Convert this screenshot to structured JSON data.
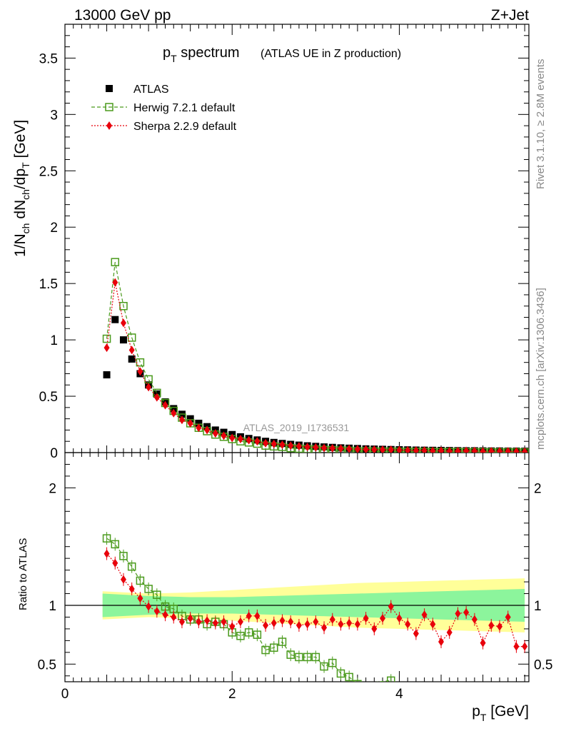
{
  "header": {
    "left": "13000 GeV pp",
    "right": "Z+Jet"
  },
  "side": {
    "rivet": "Rivet 3.1.10, ≥ 2.8M events",
    "mcplots": "mcplots.cern.ch [arXiv:1306.3436]"
  },
  "watermark": "ATLAS_2019_I1736531",
  "chart_data": {
    "type": "scatter",
    "title_main": "p",
    "title_sub": "T",
    "title_rest": " spectrum",
    "title_extra": "(ATLAS UE in Z production)",
    "top": {
      "ylabel": "1/N_ch dN_ch/dp_T [GeV]",
      "ylim": [
        0,
        3.8
      ],
      "yticks": [
        {
          "v": 0,
          "label": "0"
        },
        {
          "v": 0.5,
          "label": "0.5"
        },
        {
          "v": 1,
          "label": "1"
        },
        {
          "v": 1.5,
          "label": "1.5"
        },
        {
          "v": 2,
          "label": "2"
        },
        {
          "v": 2.5,
          "label": "2.5"
        },
        {
          "v": 3,
          "label": "3"
        },
        {
          "v": 3.5,
          "label": "3.5"
        }
      ]
    },
    "ratio": {
      "ylabel": "Ratio to ATLAS",
      "ylim": [
        0.35,
        2.3
      ],
      "yticks": [
        {
          "v": 0.5,
          "label": "0.5"
        },
        {
          "v": 1,
          "label": "1"
        },
        {
          "v": 2,
          "label": "2"
        }
      ]
    },
    "xlabel": "p_T [GeV]",
    "xlim": [
      0,
      5.55
    ],
    "xticks": [
      {
        "v": 0,
        "label": "0"
      },
      {
        "v": 2,
        "label": "2"
      },
      {
        "v": 4,
        "label": "4"
      }
    ],
    "band_x": [
      0.45,
      1.0,
      1.5,
      2.0,
      2.5,
      3.0,
      3.5,
      4.0,
      4.5,
      5.0,
      5.5
    ],
    "band_inner": [
      0.1,
      0.08,
      0.07,
      0.07,
      0.08,
      0.09,
      0.1,
      0.11,
      0.12,
      0.13,
      0.14
    ],
    "band_outer": [
      0.12,
      0.1,
      0.11,
      0.13,
      0.15,
      0.17,
      0.19,
      0.2,
      0.21,
      0.22,
      0.23
    ],
    "series": [
      {
        "name": "ATLAS",
        "color": "#000000",
        "style": "square-filled",
        "x": [
          0.5,
          0.6,
          0.7,
          0.8,
          0.9,
          1.0,
          1.1,
          1.2,
          1.3,
          1.4,
          1.5,
          1.6,
          1.7,
          1.8,
          1.9,
          2.0,
          2.1,
          2.2,
          2.3,
          2.4,
          2.5,
          2.6,
          2.7,
          2.8,
          2.9,
          3.0,
          3.1,
          3.2,
          3.3,
          3.4,
          3.5,
          3.6,
          3.7,
          3.8,
          3.9,
          4.0,
          4.1,
          4.2,
          4.3,
          4.4,
          4.5,
          4.6,
          4.7,
          4.8,
          4.9,
          5.0,
          5.1,
          5.2,
          5.3,
          5.4,
          5.5
        ],
        "y": [
          0.69,
          1.18,
          1.0,
          0.83,
          0.7,
          0.6,
          0.52,
          0.45,
          0.39,
          0.34,
          0.3,
          0.26,
          0.23,
          0.2,
          0.18,
          0.16,
          0.14,
          0.125,
          0.112,
          0.1,
          0.09,
          0.081,
          0.073,
          0.066,
          0.06,
          0.055,
          0.05,
          0.046,
          0.042,
          0.039,
          0.036,
          0.033,
          0.031,
          0.029,
          0.027,
          0.025,
          0.024,
          0.022,
          0.021,
          0.02,
          0.019,
          0.018,
          0.017,
          0.016,
          0.016,
          0.015,
          0.014,
          0.014,
          0.013,
          0.013,
          0.012
        ]
      },
      {
        "name": "Herwig 7.2.1 default",
        "color": "#4a9a1c",
        "style": "square-open",
        "x": [
          0.5,
          0.6,
          0.7,
          0.8,
          0.9,
          1.0,
          1.1,
          1.2,
          1.3,
          1.4,
          1.5,
          1.6,
          1.7,
          1.8,
          1.9,
          2.0,
          2.1,
          2.2,
          2.3,
          2.4,
          2.5,
          2.6,
          2.7,
          2.8,
          2.9,
          3.0,
          3.1,
          3.2,
          3.3,
          3.4,
          3.5,
          3.6,
          3.7,
          3.8,
          3.9,
          4.0,
          4.1,
          4.2,
          4.3,
          4.4,
          4.5,
          4.6,
          4.7,
          4.8,
          4.9,
          5.0,
          5.1,
          5.2,
          5.3,
          5.4,
          5.5
        ],
        "y": [
          1.01,
          1.69,
          1.3,
          1.02,
          0.8,
          0.65,
          0.53,
          0.44,
          0.37,
          0.31,
          0.26,
          0.22,
          0.19,
          0.16,
          0.14,
          0.12,
          0.1,
          0.09,
          0.079,
          0.062,
          0.055,
          0.05,
          0.04,
          0.035,
          0.031,
          0.028,
          0.024,
          0.022,
          0.018,
          0.016,
          0.012,
          0.011,
          0.01,
          0.009,
          0.009,
          0.008,
          0.007,
          0.007,
          0.006,
          0.006,
          0.005,
          0.005,
          0.005,
          0.004,
          0.004,
          0.004,
          0.003,
          0.003,
          0.003,
          0.003,
          0.002
        ],
        "ratio_x": [
          0.5,
          0.6,
          0.7,
          0.8,
          0.9,
          1.0,
          1.1,
          1.2,
          1.3,
          1.4,
          1.5,
          1.6,
          1.7,
          1.8,
          1.9,
          2.0,
          2.1,
          2.2,
          2.3,
          2.4,
          2.5,
          2.6,
          2.7,
          2.8,
          2.9,
          3.0,
          3.1,
          3.2,
          3.3,
          3.4,
          3.5,
          3.9
        ],
        "ratio_y": [
          1.57,
          1.52,
          1.42,
          1.33,
          1.21,
          1.14,
          1.09,
          0.99,
          0.97,
          0.91,
          0.88,
          0.88,
          0.84,
          0.86,
          0.84,
          0.77,
          0.74,
          0.77,
          0.75,
          0.62,
          0.64,
          0.69,
          0.58,
          0.56,
          0.56,
          0.56,
          0.48,
          0.51,
          0.42,
          0.39,
          0.33,
          0.36
        ]
      },
      {
        "name": "Sherpa 2.2.9 default",
        "color": "#e8000b",
        "style": "diamond-filled",
        "x": [
          0.5,
          0.6,
          0.7,
          0.8,
          0.9,
          1.0,
          1.1,
          1.2,
          1.3,
          1.4,
          1.5,
          1.6,
          1.7,
          1.8,
          1.9,
          2.0,
          2.1,
          2.2,
          2.3,
          2.4,
          2.5,
          2.6,
          2.7,
          2.8,
          2.9,
          3.0,
          3.1,
          3.2,
          3.3,
          3.4,
          3.5,
          3.6,
          3.7,
          3.8,
          3.9,
          4.0,
          4.1,
          4.2,
          4.3,
          4.4,
          4.5,
          4.6,
          4.7,
          4.8,
          4.9,
          5.0,
          5.1,
          5.2,
          5.3,
          5.4,
          5.5
        ],
        "y": [
          0.93,
          1.51,
          1.15,
          0.91,
          0.72,
          0.58,
          0.49,
          0.42,
          0.35,
          0.29,
          0.26,
          0.22,
          0.2,
          0.17,
          0.15,
          0.13,
          0.12,
          0.11,
          0.1,
          0.083,
          0.077,
          0.07,
          0.062,
          0.056,
          0.05,
          0.046,
          0.041,
          0.039,
          0.036,
          0.033,
          0.03,
          0.028,
          0.026,
          0.025,
          0.025,
          0.022,
          0.02,
          0.018,
          0.018,
          0.015,
          0.016,
          0.013,
          0.013,
          0.015,
          0.014,
          0.01,
          0.012,
          0.012,
          0.011,
          0.01,
          0.008
        ],
        "ratio_x": [
          0.5,
          0.6,
          0.7,
          0.8,
          0.9,
          1.0,
          1.1,
          1.2,
          1.3,
          1.4,
          1.5,
          1.6,
          1.7,
          1.8,
          1.9,
          2.0,
          2.1,
          2.2,
          2.3,
          2.4,
          2.5,
          2.6,
          2.7,
          2.8,
          2.9,
          3.0,
          3.1,
          3.2,
          3.3,
          3.4,
          3.5,
          3.6,
          3.7,
          3.8,
          3.9,
          4.0,
          4.1,
          4.2,
          4.3,
          4.4,
          4.5,
          4.6,
          4.7,
          4.8,
          4.9,
          5.0,
          5.1,
          5.2,
          5.3,
          5.4,
          5.5
        ],
        "ratio_y": [
          1.44,
          1.36,
          1.22,
          1.14,
          1.06,
          0.99,
          0.95,
          0.92,
          0.9,
          0.86,
          0.89,
          0.86,
          0.87,
          0.85,
          0.86,
          0.82,
          0.86,
          0.91,
          0.91,
          0.83,
          0.85,
          0.87,
          0.86,
          0.83,
          0.84,
          0.86,
          0.81,
          0.88,
          0.84,
          0.85,
          0.84,
          0.89,
          0.8,
          0.89,
          0.99,
          0.89,
          0.84,
          0.76,
          0.92,
          0.84,
          0.69,
          0.77,
          0.93,
          0.94,
          0.88,
          0.68,
          0.83,
          0.82,
          0.9,
          0.65,
          0.65
        ]
      }
    ],
    "legend_placement": "top-left"
  }
}
